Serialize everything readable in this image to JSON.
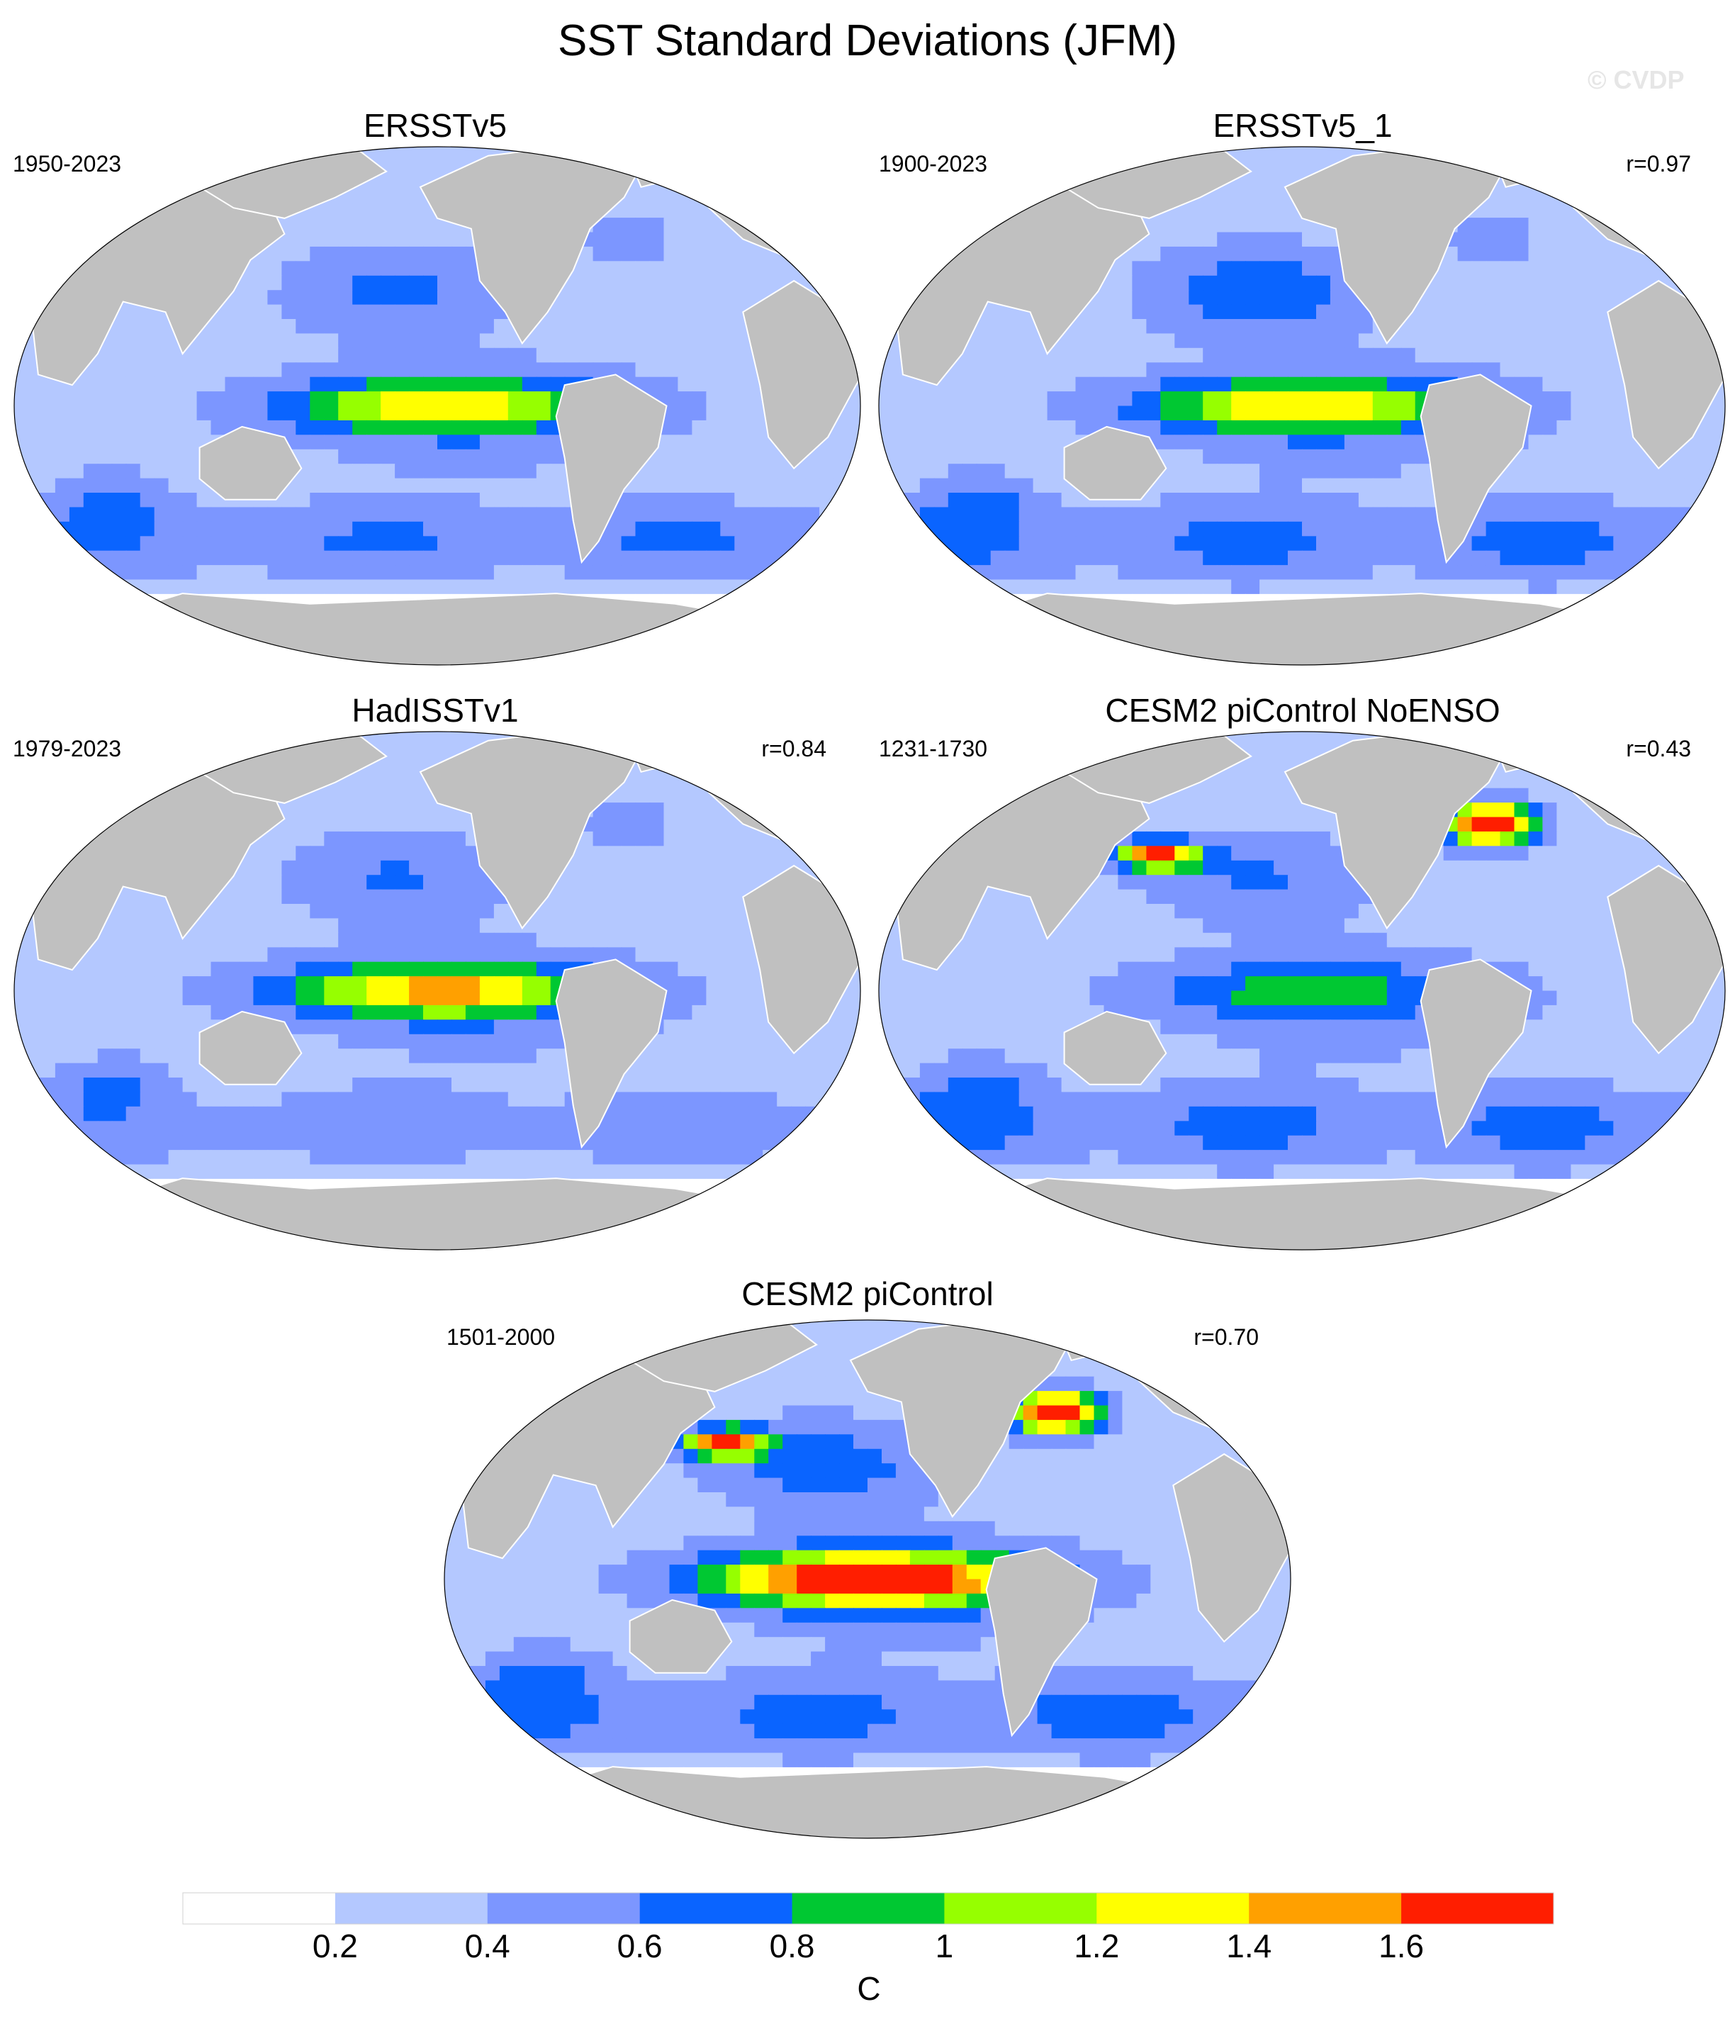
{
  "figure": {
    "title": "SST Standard Deviations (JFM)",
    "watermark": "© CVDP"
  },
  "panels": [
    {
      "title": "ERSSTv5",
      "period": "1950-2023",
      "corr": "",
      "pattern": {
        "nino": 0.95,
        "nhi": 0.55,
        "south": 0.62,
        "hot": 0.0
      }
    },
    {
      "title": "ERSSTv5_1",
      "period": "1900-2023",
      "corr": "r=0.97",
      "pattern": {
        "nino": 0.98,
        "nhi": 0.75,
        "south": 0.7,
        "hot": 0.0
      }
    },
    {
      "title": "HadISSTv1",
      "period": "1979-2023",
      "corr": "r=0.84",
      "pattern": {
        "nino": 1.05,
        "nhi": 0.5,
        "south": 0.45,
        "hot": 0.0
      }
    },
    {
      "title": "CESM2 piControl NoENSO",
      "period": "1231-1730",
      "corr": "r=0.43",
      "pattern": {
        "nino": 0.45,
        "nhi": 0.5,
        "south": 0.72,
        "hot": 1.6
      }
    },
    {
      "title": "CESM2 piControl",
      "period": "1501-2000",
      "corr": "r=0.70",
      "pattern": {
        "nino": 1.62,
        "nhi": 0.7,
        "south": 0.75,
        "hot": 1.6
      }
    }
  ],
  "colorbar": {
    "unit": "C",
    "levels": [
      "0.2",
      "0.4",
      "0.6",
      "0.8",
      "1",
      "1.2",
      "1.4",
      "1.6"
    ],
    "colors": [
      "#ffffff",
      "#b4c8ff",
      "#7c96ff",
      "#0a64ff",
      "#00c832",
      "#96ff00",
      "#ffff00",
      "#ffa000",
      "#ff1e00"
    ]
  },
  "land_color": "#c0c0c0"
}
